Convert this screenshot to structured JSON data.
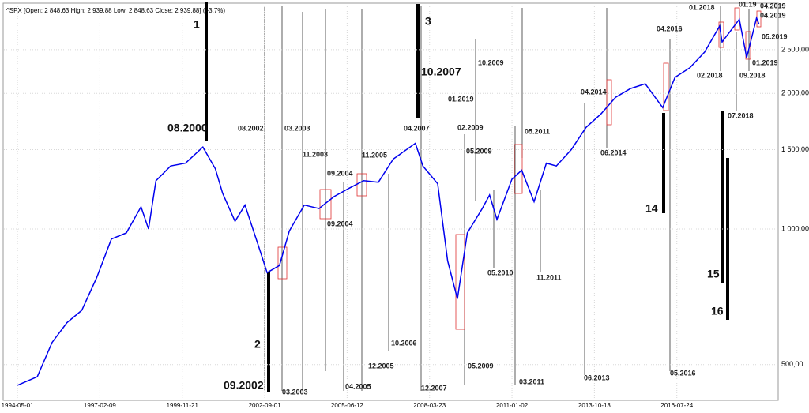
{
  "chart_data": {
    "type": "line",
    "title": "^SPX [Open: 2 848,63  High: 2 939,88  Low: 2 848,63  Close: 2 939,88] (+3,7%)",
    "color": "#0000ee",
    "log_y": true,
    "grid": true,
    "xlim": [
      "1993-11-16",
      "2019-12-24"
    ],
    "xticks": [
      "1994-05-01",
      "1997-02-09",
      "1999-11-21",
      "2002-09-01",
      "2005-06-12",
      "2008-03-23",
      "2011-01-02",
      "2013-10-13",
      "2016-07-24"
    ],
    "ylim": [
      420,
      3120
    ],
    "yticks": [
      {
        "value": 500,
        "label": "500,00"
      },
      {
        "value": 1000,
        "label": "1 000,00"
      },
      {
        "value": 1500,
        "label": "1 500,00"
      },
      {
        "value": 2000,
        "label": "2 000,00"
      },
      {
        "value": 2500,
        "label": "2 500,00"
      }
    ],
    "x": [
      "1994-05-01",
      "1995-01-01",
      "1995-07-01",
      "1996-01-01",
      "1996-07-01",
      "1997-01-01",
      "1997-07-01",
      "1998-01-01",
      "1998-07-01",
      "1998-10-01",
      "1999-01-01",
      "1999-07-01",
      "2000-01-01",
      "2000-08-01",
      "2001-01-01",
      "2001-04-01",
      "2001-09-01",
      "2002-01-01",
      "2002-07-01",
      "2002-10-01",
      "2003-03-01",
      "2003-07-01",
      "2004-01-01",
      "2004-07-01",
      "2005-01-01",
      "2005-07-01",
      "2006-01-01",
      "2006-07-01",
      "2007-01-01",
      "2007-10-01",
      "2008-01-01",
      "2008-07-01",
      "2008-11-01",
      "2009-03-01",
      "2009-07-01",
      "2010-01-01",
      "2010-04-01",
      "2010-07-01",
      "2011-01-01",
      "2011-05-01",
      "2011-10-01",
      "2012-03-01",
      "2012-07-01",
      "2013-01-01",
      "2013-07-01",
      "2014-01-01",
      "2014-07-01",
      "2015-01-01",
      "2015-07-01",
      "2016-02-01",
      "2016-07-01",
      "2017-01-01",
      "2017-07-01",
      "2018-01-01",
      "2018-02-01",
      "2018-09-01",
      "2018-12-01",
      "2019-04-01",
      "2019-05-01"
    ],
    "values": [
      450,
      470,
      560,
      620,
      660,
      780,
      950,
      980,
      1120,
      1000,
      1280,
      1380,
      1400,
      1520,
      1360,
      1200,
      1040,
      1130,
      900,
      800,
      830,
      990,
      1130,
      1110,
      1180,
      1230,
      1280,
      1270,
      1430,
      1550,
      1380,
      1260,
      850,
      700,
      980,
      1110,
      1190,
      1050,
      1290,
      1350,
      1150,
      1400,
      1380,
      1500,
      1680,
      1800,
      1960,
      2050,
      2100,
      1860,
      2170,
      2280,
      2470,
      2820,
      2600,
      2920,
      2400,
      2940,
      2850
    ],
    "annotations": [
      "1",
      "08.2000",
      "08.2002",
      "03.2003",
      "11.2003",
      "09.2004",
      "11.2005",
      "09.2004",
      "2",
      "09.2002",
      "03.2003",
      "04.2005",
      "12.2005",
      "10.2006",
      "3",
      "10.2007",
      "04.2007",
      "10.2009",
      "01.2019",
      "02.2009",
      "05.2009",
      "05.2011",
      "05.2010",
      "11.2011",
      "05.2009",
      "12.2007",
      "03.2011",
      "06.2013",
      "04.2014",
      "06.2014",
      "04.2016",
      "14",
      "05.2016",
      "01.2018",
      "02.2018",
      "07.2018",
      "15",
      "16",
      "01.19",
      "04.2019",
      "04.2019",
      "05.2019",
      "01.2019",
      "09.2018"
    ]
  }
}
